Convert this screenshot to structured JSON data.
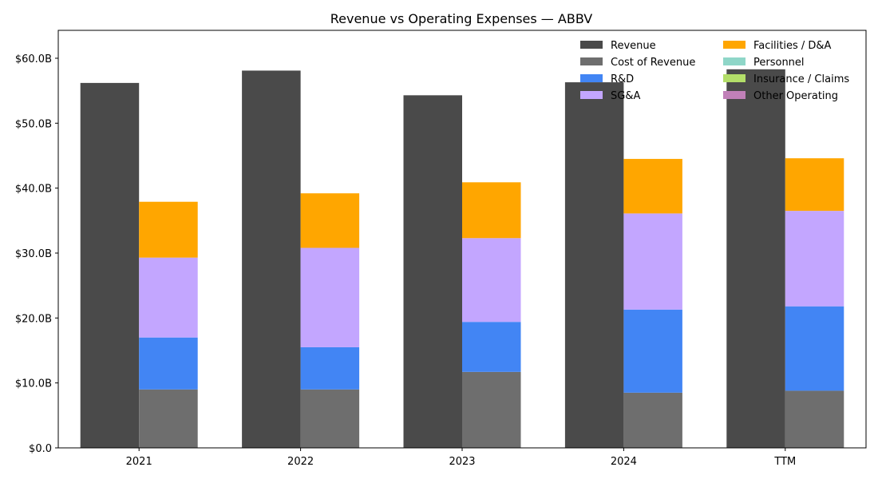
{
  "chart_data": {
    "type": "bar",
    "title": "Revenue vs Operating Expenses — ABBV",
    "xlabel": "",
    "ylabel": "",
    "categories": [
      "2021",
      "2022",
      "2023",
      "2024",
      "TTM"
    ],
    "ylim": [
      0,
      64.3
    ],
    "yticks": [
      0,
      10,
      20,
      30,
      40,
      50,
      60
    ],
    "ytick_labels": [
      "$0.0",
      "$10.0B",
      "$20.0B",
      "$30.0B",
      "$40.0B",
      "$50.0B",
      "$60.0B"
    ],
    "unit": "$B",
    "grid": false,
    "legend_position": "top-right",
    "revenue": {
      "name": "Revenue",
      "color": "#4a4a4a",
      "values": [
        56.2,
        58.1,
        54.3,
        56.3,
        58.3
      ]
    },
    "expense_series": [
      {
        "name": "Cost of Revenue",
        "color": "#6e6e6e",
        "values": [
          9.0,
          9.0,
          11.7,
          8.5,
          8.8
        ]
      },
      {
        "name": "R&D",
        "color": "#4285f4",
        "values": [
          8.0,
          6.5,
          7.7,
          12.8,
          13.0
        ]
      },
      {
        "name": "SG&A",
        "color": "#c3a6ff",
        "values": [
          12.3,
          15.3,
          12.9,
          14.8,
          14.7
        ]
      },
      {
        "name": "Facilities / D&A",
        "color": "#ffa600",
        "values": [
          8.6,
          8.4,
          8.6,
          8.4,
          8.1
        ]
      },
      {
        "name": "Personnel",
        "color": "#8fd6c8",
        "values": [
          0,
          0,
          0,
          0,
          0
        ]
      },
      {
        "name": "Insurance / Claims",
        "color": "#b3de69",
        "values": [
          0,
          0,
          0,
          0,
          0
        ]
      },
      {
        "name": "Other Operating",
        "color": "#c080b8",
        "values": [
          0,
          0,
          0,
          0,
          0
        ]
      }
    ]
  }
}
